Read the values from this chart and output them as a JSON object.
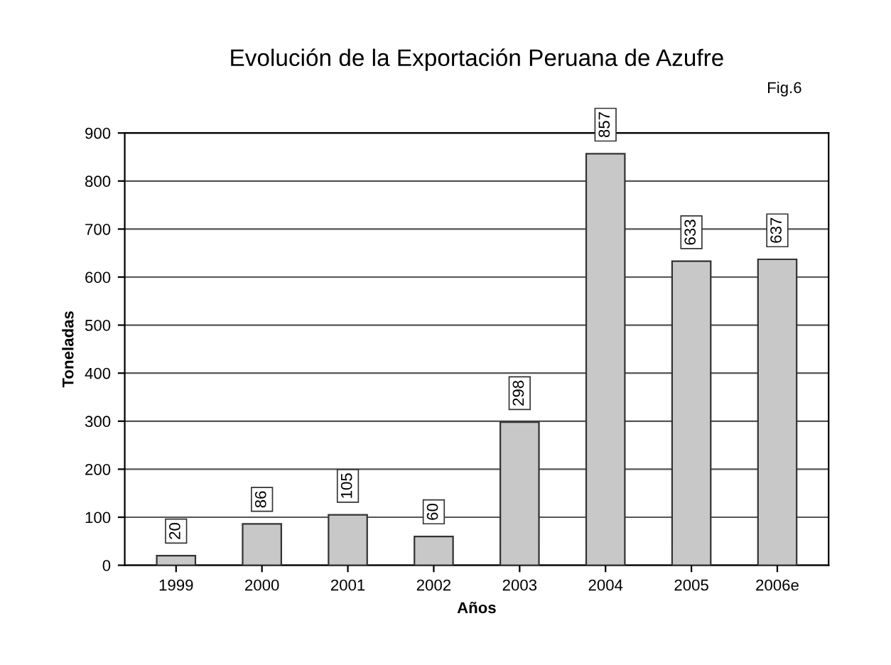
{
  "chart_data": {
    "type": "bar",
    "title": "Evolución de la Exportación Peruana de Azufre",
    "xlabel": "Años",
    "ylabel": "Toneladas",
    "annotations": [
      "Fig.6"
    ],
    "categories": [
      "1999",
      "2000",
      "2001",
      "2002",
      "2003",
      "2004",
      "2005",
      "2006e"
    ],
    "values": [
      20,
      86,
      105,
      60,
      298,
      857,
      633,
      637
    ],
    "color": "#c8c8c8",
    "ylim": [
      0,
      900
    ],
    "yticks": [
      0,
      100,
      200,
      300,
      400,
      500,
      600,
      700,
      800,
      900
    ],
    "grid": "y",
    "data_labels": true
  }
}
